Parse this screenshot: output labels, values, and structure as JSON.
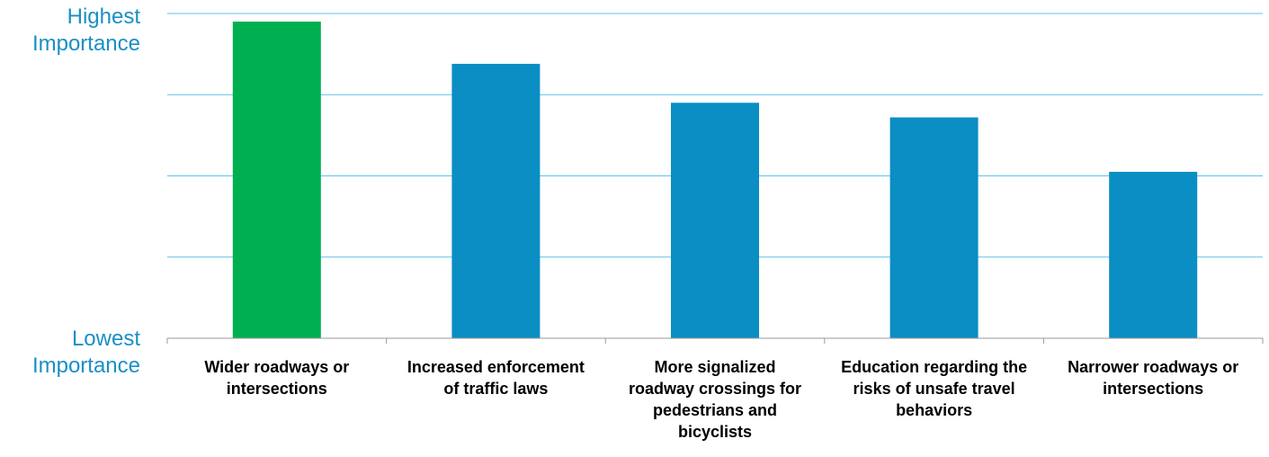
{
  "colors": {
    "accent": "#1a8fc4",
    "highlight_bar": "#00b050",
    "bar": "#0a8ec4",
    "gridline": "#5fc3e6",
    "axis": "#9a9a9a",
    "category_text": "#000000"
  },
  "chart_data": {
    "type": "bar",
    "y_axis_top_label": "Highest Importance",
    "y_axis_bottom_label": "Lowest Importance",
    "categories": [
      "Wider roadways or intersections",
      "Increased enforcement of traffic laws",
      "More signalized roadway crossings for pedestrians and bicyclists",
      "Education regarding the risks of unsafe travel behaviors",
      "Narrower roadways or intersections"
    ],
    "values": [
      3.9,
      3.38,
      2.9,
      2.72,
      2.05
    ],
    "highlighted_index": 0,
    "ylim": [
      0,
      4
    ],
    "gridlines": [
      1,
      2,
      3,
      4
    ],
    "grid": true,
    "legend": "none"
  }
}
